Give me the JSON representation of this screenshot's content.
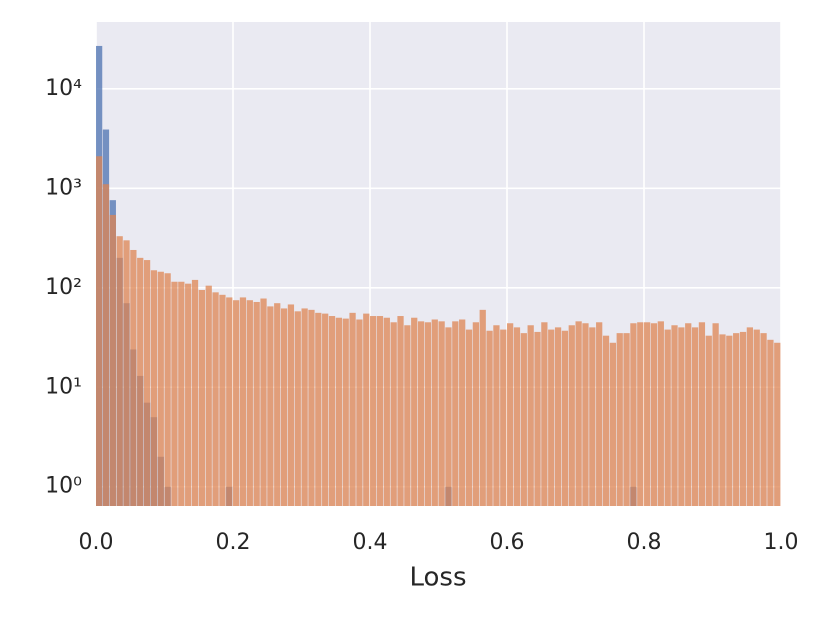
{
  "chart_data": {
    "type": "histogram",
    "xlabel": "Loss",
    "yscale": "log",
    "grid": true,
    "bins": [
      0,
      0.01,
      0.02,
      0.03,
      0.04,
      0.05,
      0.06,
      0.07,
      0.08,
      0.09,
      0.1,
      0.11,
      0.12,
      0.13,
      0.14,
      0.15,
      0.16,
      0.17,
      0.18,
      0.19,
      0.2,
      0.21,
      0.22,
      0.23,
      0.24,
      0.25,
      0.26,
      0.27,
      0.28,
      0.29,
      0.3,
      0.31,
      0.32,
      0.33,
      0.34,
      0.35,
      0.36,
      0.37,
      0.38,
      0.39,
      0.4,
      0.41,
      0.42,
      0.43,
      0.44,
      0.45,
      0.46,
      0.47,
      0.48,
      0.49,
      0.5,
      0.51,
      0.52,
      0.53,
      0.54,
      0.55,
      0.56,
      0.57,
      0.58,
      0.59,
      0.6,
      0.61,
      0.62,
      0.63,
      0.64,
      0.65,
      0.66,
      0.67,
      0.68,
      0.69,
      0.7,
      0.71,
      0.72,
      0.73,
      0.74,
      0.75,
      0.76,
      0.77,
      0.78,
      0.79,
      0.8,
      0.81,
      0.82,
      0.83,
      0.84,
      0.85,
      0.86,
      0.87,
      0.88,
      0.89,
      0.9,
      0.91,
      0.92,
      0.93,
      0.94,
      0.95,
      0.96,
      0.97,
      0.98,
      0.99,
      1
    ],
    "series": [
      {
        "color": "#4c72b0",
        "values": [
          27000,
          3900,
          760,
          200,
          70,
          24,
          13,
          7,
          5,
          2,
          1,
          0,
          0,
          0,
          0,
          0,
          0,
          0,
          0,
          1,
          0,
          0,
          0,
          0,
          0,
          0,
          0,
          0,
          0,
          0,
          0,
          0,
          0,
          0,
          0,
          0,
          0,
          0,
          0,
          0,
          0,
          0,
          0,
          0,
          0,
          0,
          0,
          0,
          0,
          0,
          0,
          1,
          0,
          0,
          0,
          0,
          0,
          0,
          0,
          0,
          0,
          0,
          0,
          0,
          0,
          0,
          0,
          0,
          0,
          0,
          0,
          0,
          0,
          0,
          0,
          0,
          0,
          0,
          1,
          0,
          0,
          0,
          0,
          0,
          0,
          0,
          0,
          0,
          0,
          0,
          0,
          0,
          0,
          0,
          0,
          0,
          0,
          0,
          0,
          0
        ]
      },
      {
        "color": "#dd8452",
        "values": [
          2100,
          1100,
          540,
          330,
          300,
          240,
          200,
          190,
          150,
          145,
          140,
          115,
          115,
          110,
          120,
          95,
          105,
          90,
          85,
          80,
          75,
          80,
          75,
          72,
          78,
          65,
          70,
          62,
          68,
          58,
          62,
          60,
          56,
          55,
          52,
          50,
          49,
          56,
          48,
          55,
          52,
          52,
          50,
          45,
          52,
          42,
          50,
          46,
          45,
          48,
          46,
          40,
          46,
          48,
          38,
          45,
          60,
          37,
          42,
          38,
          44,
          40,
          35,
          42,
          36,
          45,
          38,
          40,
          37,
          42,
          46,
          44,
          40,
          45,
          33,
          28,
          35,
          35,
          44,
          45,
          45,
          44,
          46,
          38,
          42,
          40,
          44,
          40,
          45,
          33,
          44,
          34,
          33,
          35,
          36,
          40,
          38,
          35,
          30,
          28
        ]
      }
    ],
    "xlim": [
      0,
      1
    ],
    "xticks": [
      {
        "value": 0,
        "label": "0.0"
      },
      0.2,
      0.4,
      0.6,
      0.8,
      {
        "value": 1,
        "label": "1.0"
      }
    ],
    "ylim": [
      0.64,
      47000
    ],
    "yticks": [
      {
        "value": 1,
        "label": "10⁰"
      },
      {
        "value": 10,
        "label": "10¹"
      },
      {
        "value": 100,
        "label": "10²"
      },
      {
        "value": 1000,
        "label": "10³"
      },
      {
        "value": 10000,
        "label": "10⁴"
      }
    ]
  }
}
